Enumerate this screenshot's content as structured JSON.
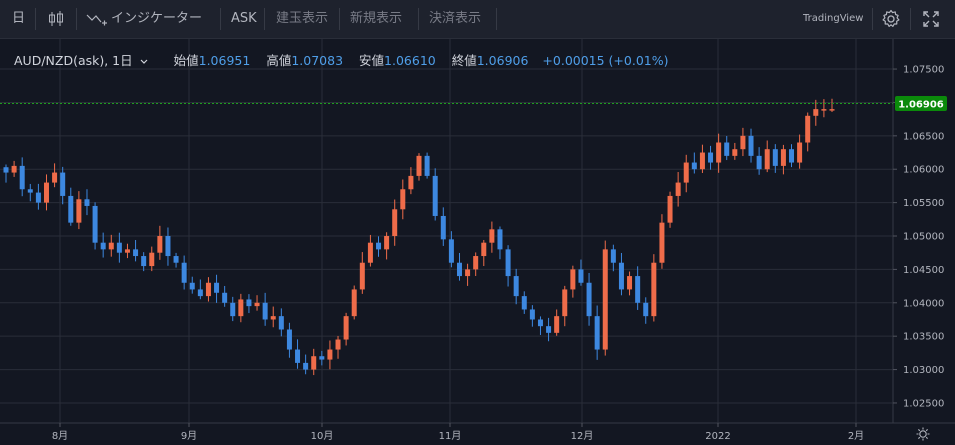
{
  "toolbar": {
    "interval": "日",
    "indicators_label": "インジケーター",
    "price_side": "ASK",
    "open_position": "建玉表示",
    "new_order": "新規表示",
    "settlement": "決済表示",
    "brand": "TradingView"
  },
  "legend": {
    "symbol": "AUD/NZD(ask), 1日",
    "open_label": "始値",
    "open": "1.06951",
    "high_label": "高値",
    "high": "1.07083",
    "low_label": "安値",
    "low": "1.06610",
    "close_label": "終値",
    "close": "1.06906",
    "change": "+0.00015 (+0.01%)"
  },
  "colors": {
    "up": "#ef6c4a",
    "down": "#3d88e0",
    "background": "#131722",
    "grid": "#2a2e39",
    "last_price_bg": "#0b8a0b"
  },
  "chart_data": {
    "type": "candlestick",
    "symbol": "AUD/NZD(ask)",
    "interval": "1日",
    "ylim": [
      1.022,
      1.0795
    ],
    "y_ticks": [
      "1.07500",
      "1.07000",
      "1.06500",
      "1.06000",
      "1.05500",
      "1.05000",
      "1.04500",
      "1.04000",
      "1.03500",
      "1.03000",
      "1.02500"
    ],
    "x_ticks": [
      "8月",
      "9月",
      "10月",
      "11月",
      "12月",
      "2022",
      "2月"
    ],
    "last_price": "1.06906",
    "close_path": [
      1.0595,
      1.0605,
      1.057,
      1.0565,
      1.055,
      1.058,
      1.0595,
      1.056,
      1.052,
      1.0555,
      1.0545,
      1.049,
      1.048,
      1.049,
      1.0475,
      1.048,
      1.047,
      1.0455,
      1.0475,
      1.05,
      1.047,
      1.046,
      1.043,
      1.042,
      1.041,
      1.043,
      1.0415,
      1.04,
      1.038,
      1.0405,
      1.0395,
      1.04,
      1.0375,
      1.038,
      1.036,
      1.033,
      1.031,
      1.03,
      1.032,
      1.0315,
      1.033,
      1.0345,
      1.038,
      1.042,
      1.046,
      1.049,
      1.048,
      1.05,
      1.054,
      1.057,
      1.059,
      1.062,
      1.059,
      1.053,
      1.0495,
      1.046,
      1.044,
      1.045,
      1.047,
      1.049,
      1.051,
      1.048,
      1.044,
      1.041,
      1.039,
      1.0375,
      1.0365,
      1.0355,
      1.038,
      1.042,
      1.045,
      1.043,
      1.038,
      1.033,
      1.048,
      1.046,
      1.042,
      1.044,
      1.04,
      1.038,
      1.046,
      1.052,
      1.056,
      1.058,
      1.061,
      1.06,
      1.0625,
      1.061,
      1.064,
      1.062,
      1.063,
      1.065,
      1.062,
      1.06,
      1.063,
      1.0605,
      1.063,
      1.061,
      1.064,
      1.068,
      1.069,
      1.069,
      1.069
    ],
    "series": [
      {
        "name": "AUD/NZD(ask)"
      }
    ]
  }
}
